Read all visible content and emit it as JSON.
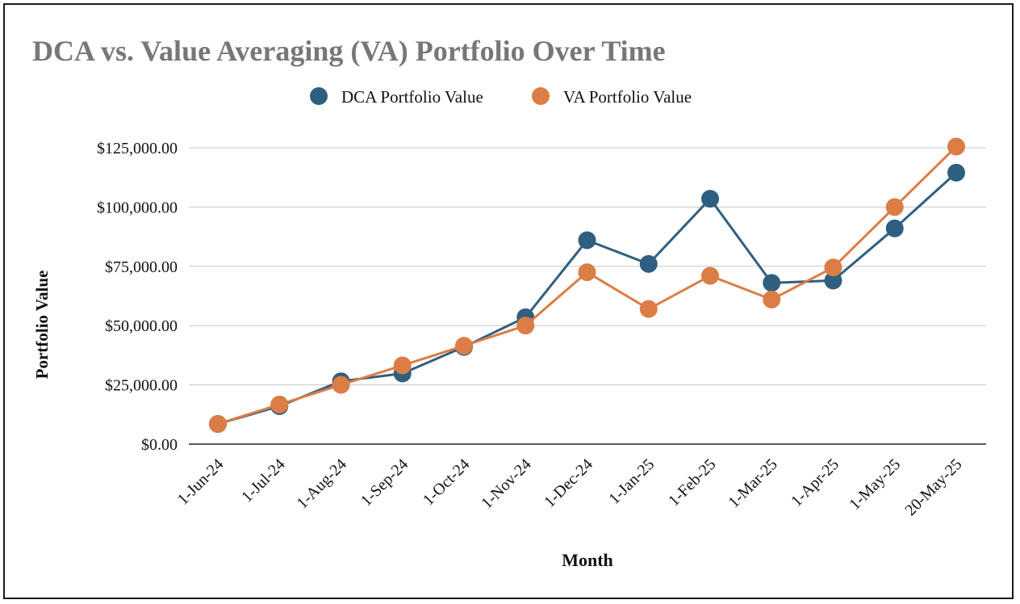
{
  "chart_data": {
    "type": "line",
    "title": "DCA vs. Value Averaging (VA) Portfolio Over Time",
    "xlabel": "Month",
    "ylabel": "Portfolio Value",
    "ylim": [
      0,
      125000
    ],
    "yticks": [
      0,
      25000,
      50000,
      75000,
      100000,
      125000
    ],
    "ytick_labels": [
      "$0.00",
      "$25,000.00",
      "$50,000.00",
      "$75,000.00",
      "$100,000.00",
      "$125,000.00"
    ],
    "grid": true,
    "legend_position": "top-center",
    "categories": [
      "1-Jun-24",
      "1-Jul-24",
      "1-Aug-24",
      "1-Sep-24",
      "1-Oct-24",
      "1-Nov-24",
      "1-Dec-24",
      "1-Jan-25",
      "1-Feb-25",
      "1-Mar-25",
      "1-Apr-25",
      "1-May-25",
      "20-May-25"
    ],
    "series": [
      {
        "name": "DCA Portfolio Value",
        "color": "#2f5f80",
        "values": [
          8500,
          16000,
          26500,
          29800,
          41000,
          53500,
          86000,
          76000,
          103500,
          68000,
          69000,
          91000,
          114500
        ]
      },
      {
        "name": "VA Portfolio Value",
        "color": "#db7d45",
        "values": [
          8500,
          16700,
          25000,
          33200,
          41500,
          50000,
          72500,
          57000,
          71000,
          61000,
          74500,
          100000,
          125500
        ]
      }
    ]
  }
}
